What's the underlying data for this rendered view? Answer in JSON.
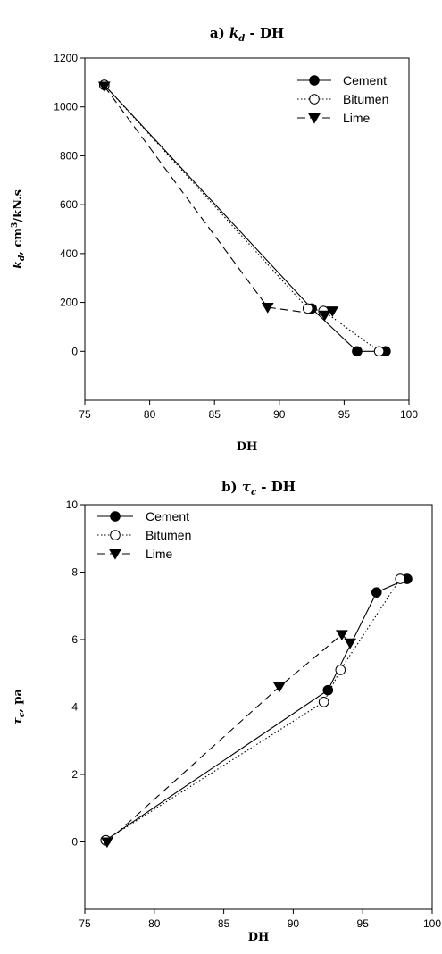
{
  "chart_data": [
    {
      "type": "line",
      "title_prefix": "a) ",
      "title_var": "k",
      "title_sub": "d",
      "title_suffix": " - DH",
      "xlabel": "DH",
      "ylabel": "k_d, cm^3/kN.s",
      "ylabel_var": "k",
      "ylabel_sub": "d",
      "ylabel_rest": ", cm",
      "ylabel_sup": "3",
      "ylabel_unit": "/kN.s",
      "xlim": [
        75,
        100
      ],
      "ylim": [
        -200,
        1200
      ],
      "xticks": [
        75,
        80,
        85,
        90,
        95,
        100
      ],
      "yticks": [
        0,
        200,
        400,
        600,
        800,
        1000,
        1200
      ],
      "grid": false,
      "legend_position": "top-right",
      "series": [
        {
          "name": "Cement",
          "style": "solid",
          "marker": "filled-circle",
          "x": [
            76.5,
            92.5,
            96.0,
            98.2
          ],
          "y": [
            1090,
            175,
            0,
            0
          ]
        },
        {
          "name": "Bitumen",
          "style": "dotted",
          "marker": "open-circle",
          "x": [
            76.5,
            92.2,
            93.4,
            97.7
          ],
          "y": [
            1090,
            175,
            165,
            0
          ]
        },
        {
          "name": "Lime",
          "style": "dashed",
          "marker": "filled-triangle-down",
          "x": [
            76.5,
            89.1,
            93.5,
            94.1
          ],
          "y": [
            1085,
            180,
            148,
            165
          ]
        }
      ]
    },
    {
      "type": "line",
      "title_prefix": "b) ",
      "title_var": "τ",
      "title_sub": "c",
      "title_suffix": " - DH",
      "xlabel": "DH",
      "ylabel": "τ_c, pa",
      "ylabel_var": "τ",
      "ylabel_sub": "c",
      "ylabel_rest": ", pa",
      "ylabel_sup": "",
      "ylabel_unit": "",
      "xlim": [
        75,
        100
      ],
      "ylim": [
        -2,
        10
      ],
      "xticks": [
        75,
        80,
        85,
        90,
        95,
        100
      ],
      "yticks": [
        0,
        2,
        4,
        6,
        8,
        10
      ],
      "grid": false,
      "legend_position": "top-left",
      "series": [
        {
          "name": "Cement",
          "style": "solid",
          "marker": "filled-circle",
          "x": [
            76.5,
            92.5,
            96.0,
            98.2
          ],
          "y": [
            0.05,
            4.5,
            7.4,
            7.8
          ]
        },
        {
          "name": "Bitumen",
          "style": "dotted",
          "marker": "open-circle",
          "x": [
            76.5,
            92.2,
            93.4,
            97.7
          ],
          "y": [
            0.05,
            4.15,
            5.1,
            7.8
          ]
        },
        {
          "name": "Lime",
          "style": "dashed",
          "marker": "filled-triangle-down",
          "x": [
            76.6,
            89.0,
            93.5,
            94.1
          ],
          "y": [
            0.0,
            4.6,
            6.15,
            5.9
          ]
        }
      ]
    }
  ]
}
